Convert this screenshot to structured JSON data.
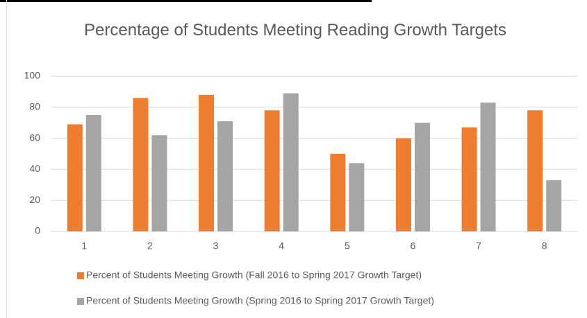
{
  "chart_data": {
    "type": "bar",
    "title": "Percentage of Students Meeting Reading Growth Targets",
    "categories": [
      "1",
      "2",
      "3",
      "4",
      "5",
      "6",
      "7",
      "8"
    ],
    "series": [
      {
        "name": "Percent of Students Meeting Growth (Fall 2016 to Spring 2017 Growth Target)",
        "color": "#ed7d31",
        "values": [
          69,
          86,
          88,
          78,
          50,
          60,
          67,
          78
        ]
      },
      {
        "name": "Percent of Students Meeting Growth (Spring 2016 to Spring 2017 Growth Target)",
        "color": "#a5a5a5",
        "values": [
          75,
          62,
          71,
          89,
          44,
          70,
          83,
          33
        ]
      }
    ],
    "ylim": [
      0,
      100
    ],
    "yticks": [
      0,
      20,
      40,
      60,
      80,
      100
    ],
    "grid": true,
    "legend": "bottom"
  }
}
